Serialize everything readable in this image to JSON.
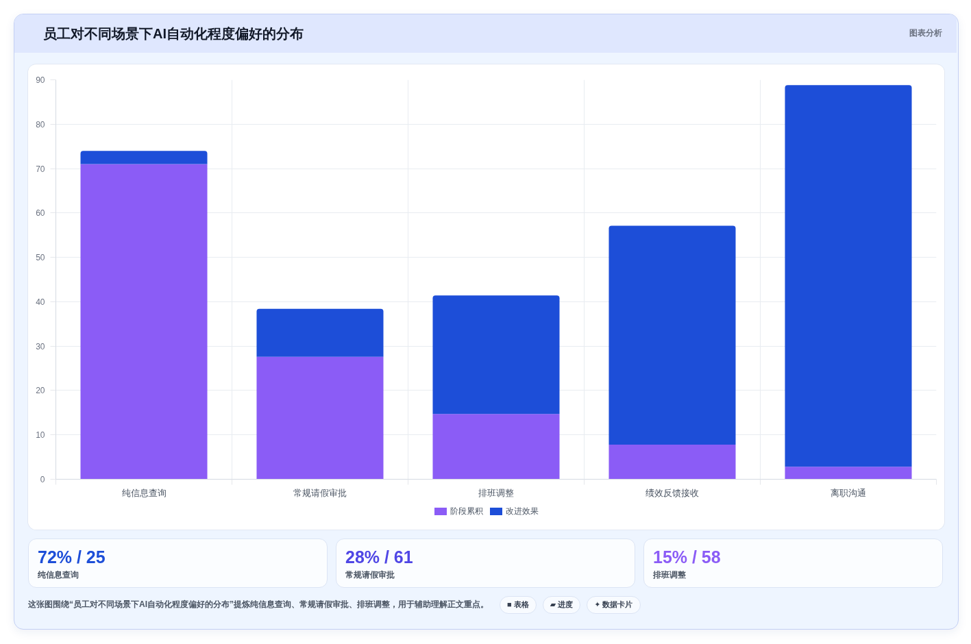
{
  "chart_data": [
    {
      "type": "bar",
      "title": "员工对不同场景下AI自动化程度偏好的分布",
      "annotations": [
        "图表分析"
      ],
      "categories": [
        "纯信息查询",
        "常规请假审批",
        "排班调整",
        "绩效反馈接收",
        "离职沟通"
      ],
      "stacked": true,
      "series": [
        {
          "name": "阶段累积",
          "color": "#8b5cf6",
          "values": [
            71,
            27.6,
            14.7,
            7.8,
            2.8
          ]
        },
        {
          "name": "改进效果",
          "color": "#1d4ed8",
          "values": [
            3,
            10.8,
            26.7,
            49.3,
            86
          ]
        }
      ],
      "ylim": [
        0,
        90
      ],
      "yticks": [
        0,
        10,
        20,
        30,
        40,
        50,
        60,
        70,
        80,
        90
      ],
      "grid": true,
      "legend": "bottom"
    },
    {
      "type": "other",
      "title": "72% / 25",
      "subtitle": "纯信息查询",
      "color": "#1d4ed8"
    },
    {
      "type": "other",
      "title": "28% / 61",
      "subtitle": "常规请假审批",
      "color": "#4f46e5"
    },
    {
      "type": "other",
      "title": "15% / 58",
      "subtitle": "排班调整",
      "color": "#8b5cf6"
    },
    {
      "type": "other",
      "annotations": [
        "这张图围绕“员工对不同场景下AI自动化程度偏好的分布”提炼纯信息查询、常规请假审批、排班调整，用于辅助理解正文重点。",
        "■ 表格",
        "▰ 进度",
        "✦ 数据卡片"
      ]
    }
  ]
}
